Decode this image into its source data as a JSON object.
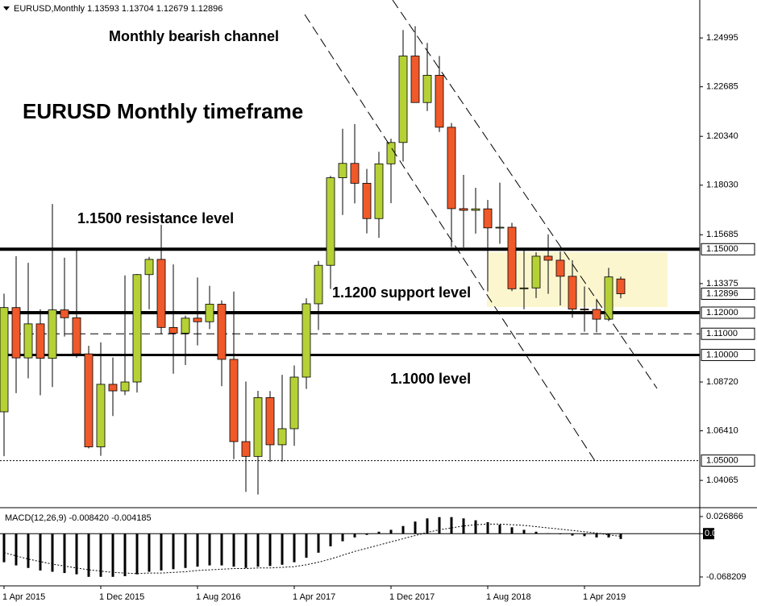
{
  "chart_data": [
    {
      "type": "candlestick",
      "symbol": "EURUSD,Monthly",
      "title": "EURUSD Monthly timeframe",
      "annotations": [
        "Monthly bearish channel",
        "1.1500 resistance level",
        "1.1200 support level",
        "1.1000 level"
      ],
      "categories": [
        "1 Apr 2015",
        null,
        null,
        null,
        null,
        null,
        null,
        null,
        "1 Dec 2015",
        null,
        null,
        null,
        null,
        null,
        null,
        null,
        "1 Aug 2016",
        null,
        null,
        null,
        null,
        null,
        null,
        null,
        "1 Apr 2017",
        null,
        null,
        null,
        null,
        null,
        null,
        null,
        "1 Dec 2017",
        null,
        null,
        null,
        null,
        null,
        null,
        null,
        "1 Aug 2018",
        null,
        null,
        null,
        null,
        null,
        null,
        null,
        "1 Apr 2019",
        null,
        null,
        null
      ],
      "open": [
        1.0731,
        1.1224,
        1.0986,
        1.1147,
        1.0984,
        1.1213,
        1.1176,
        1.1005,
        1.0565,
        1.0861,
        1.083,
        1.0872,
        1.138,
        1.1452,
        1.113,
        1.1103,
        1.1174,
        1.1157,
        1.124,
        1.0979,
        1.059,
        1.052,
        1.0798,
        1.0575,
        1.0651,
        1.0895,
        1.1242,
        1.1424,
        1.1838,
        1.1906,
        1.1812,
        1.1645,
        1.1904,
        1.2005,
        1.2414,
        1.2194,
        1.2323,
        1.2077,
        1.1692,
        1.1684,
        1.1691,
        1.1601,
        1.1604,
        1.1313,
        1.1317,
        1.1467,
        1.1448,
        1.1372,
        1.1217,
        1.1215,
        1.1169,
        1.13593
      ],
      "high": [
        1.129,
        1.1467,
        1.1436,
        1.1216,
        1.1714,
        1.146,
        1.1495,
        1.1043,
        1.106,
        1.0988,
        1.1376,
        1.1383,
        1.1464,
        1.1616,
        1.1428,
        1.1186,
        1.1366,
        1.1327,
        1.1258,
        1.13,
        1.0874,
        1.083,
        1.0829,
        1.0906,
        1.095,
        1.1268,
        1.1445,
        1.1847,
        1.207,
        1.2092,
        1.188,
        1.1961,
        1.2023,
        1.2537,
        1.2555,
        1.2476,
        1.2414,
        1.2097,
        1.1852,
        1.1791,
        1.1733,
        1.1815,
        1.1625,
        1.15,
        1.1486,
        1.157,
        1.1489,
        1.1448,
        1.1324,
        1.1265,
        1.1412,
        1.13704
      ],
      "low": [
        1.0521,
        1.0819,
        1.0889,
        1.0809,
        1.0848,
        1.1087,
        1.0987,
        1.0558,
        1.0523,
        1.0711,
        1.081,
        1.0822,
        1.1216,
        1.1099,
        1.0911,
        1.0952,
        1.1045,
        1.1122,
        1.0852,
        1.0507,
        1.0352,
        1.034,
        1.0494,
        1.0495,
        1.057,
        1.0839,
        1.1118,
        1.1312,
        1.1662,
        1.1717,
        1.1575,
        1.1554,
        1.1718,
        1.1915,
        1.2206,
        1.2154,
        1.2055,
        1.151,
        1.1508,
        1.1574,
        1.1301,
        1.1526,
        1.1302,
        1.1216,
        1.1269,
        1.1289,
        1.1234,
        1.1176,
        1.111,
        1.1107,
        1.116,
        1.12679
      ],
      "close": [
        1.1224,
        1.0986,
        1.1147,
        1.0984,
        1.1213,
        1.1176,
        1.1005,
        1.0565,
        1.0861,
        1.083,
        1.0872,
        1.138,
        1.1452,
        1.113,
        1.1103,
        1.1174,
        1.1157,
        1.124,
        1.0979,
        1.059,
        1.052,
        1.0798,
        1.0575,
        1.0651,
        1.0895,
        1.1242,
        1.1424,
        1.1838,
        1.1906,
        1.1812,
        1.1645,
        1.1904,
        1.2005,
        1.2414,
        1.2194,
        1.2323,
        1.2077,
        1.1692,
        1.1684,
        1.1691,
        1.1601,
        1.1604,
        1.1313,
        1.1317,
        1.1467,
        1.1448,
        1.1372,
        1.1217,
        1.1215,
        1.1169,
        1.1369,
        1.12896
      ],
      "up_color": "#b5d136",
      "down_color": "#f0592a",
      "ylim": [
        1.0285,
        1.2679
      ],
      "yticks": [
        1.24995,
        1.22685,
        {
          "value": 1.2034,
          "label": "1.20340"
        },
        {
          "value": 1.1803,
          "label": "1.18030"
        },
        1.15685,
        1.13375,
        {
          "value": 1.0872,
          "label": "1.08720"
        },
        {
          "value": 1.0641,
          "label": "1.06410"
        },
        1.04065
      ],
      "levels": [
        {
          "value": 1.15,
          "label": "1.15000",
          "style": "thick"
        },
        {
          "value": 1.12,
          "label": "1.12000",
          "style": "thick"
        },
        {
          "value": 1.11,
          "label": "1.11000",
          "style": "dashed"
        },
        {
          "value": 1.1,
          "label": "1.10000",
          "style": "medium"
        },
        {
          "value": 1.05,
          "label": "1.05000",
          "style": "dotted"
        }
      ]
    },
    {
      "type": "macd",
      "name": "MACD(12,26,9)",
      "legend_values": [
        {
          "value": -0.00842,
          "label": "-0.008420"
        },
        -0.004185
      ],
      "values": [
        -0.045,
        -0.05,
        -0.054,
        -0.058,
        -0.06,
        -0.062,
        -0.064,
        -0.068,
        -0.068,
        -0.068,
        -0.067,
        -0.064,
        -0.06,
        -0.058,
        -0.056,
        -0.054,
        -0.052,
        -0.05,
        -0.05,
        -0.052,
        -0.054,
        -0.052,
        -0.051,
        -0.049,
        -0.045,
        -0.038,
        -0.03,
        -0.02,
        -0.012,
        -0.006,
        -0.002,
        0.003,
        0.006,
        0.012,
        0.019,
        0.024,
        0.026,
        0.026,
        0.024,
        0.021,
        0.018,
        0.014,
        0.01,
        0.006,
        0.003,
        0.0005,
        -0.001,
        -0.003,
        -0.004,
        -0.006,
        -0.006,
        -0.00842
      ],
      "signal": [
        -0.03,
        -0.035,
        -0.04,
        -0.044,
        -0.048,
        -0.051,
        -0.054,
        -0.057,
        -0.059,
        -0.061,
        -0.062,
        -0.063,
        -0.062,
        -0.062,
        -0.061,
        -0.06,
        -0.058,
        -0.057,
        -0.056,
        -0.055,
        -0.055,
        -0.054,
        -0.054,
        -0.053,
        -0.052,
        -0.049,
        -0.045,
        -0.04,
        -0.034,
        -0.028,
        -0.023,
        -0.018,
        -0.013,
        -0.008,
        -0.003,
        0.002,
        0.006,
        0.009,
        0.012,
        0.014,
        0.015,
        0.015,
        0.014,
        0.013,
        0.011,
        0.009,
        0.007,
        0.005,
        0.003,
        0.001,
        -0.002,
        -0.004185
      ],
      "color": "#000000",
      "ylim": [
        -0.0822,
        0.0383
      ],
      "yticks": [
        0.026866,
        {
          "value": 0,
          "label": "0.00"
        },
        -0.068209
      ]
    }
  ]
}
